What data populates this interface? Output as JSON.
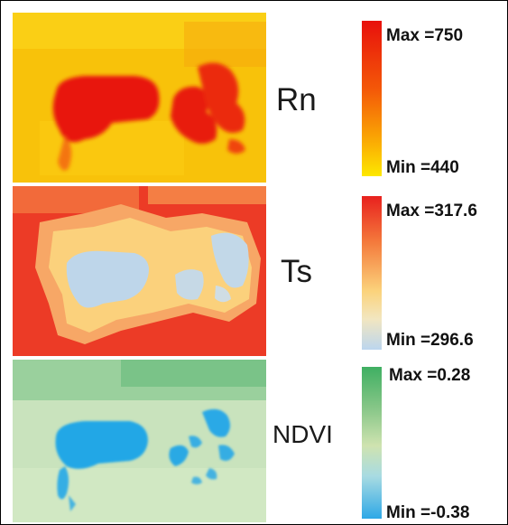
{
  "panels": [
    {
      "id": "rn",
      "label": "Rn",
      "max_label": "Max =750",
      "min_label": "Min =440",
      "colormap": {
        "max_color": "#e8100c",
        "mid_color": "#f45a08",
        "min_color": "#fde800"
      }
    },
    {
      "id": "ts",
      "label": "Ts",
      "max_label": "Max =317.6",
      "min_label": "Min =296.6",
      "colormap": {
        "max_color": "#e8211e",
        "mid_color": "#fbd37c",
        "min_color": "#bcd6ee"
      }
    },
    {
      "id": "ndvi",
      "label": "NDVI",
      "max_label": "Max =0.28",
      "min_label": "Min =-0.38",
      "colormap": {
        "max_color": "#3faf62",
        "mid_color": "#cfe3b0",
        "min_color": "#2ea8e6"
      }
    }
  ]
}
